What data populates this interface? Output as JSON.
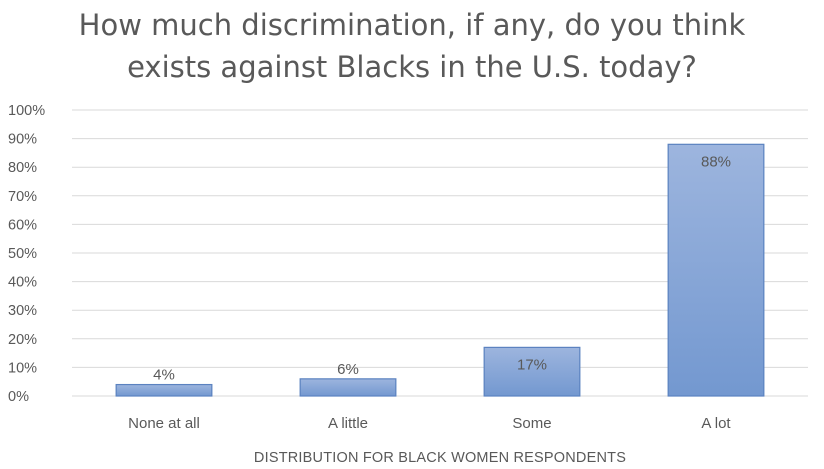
{
  "chart_data": {
    "type": "bar",
    "title_lines": [
      "How much discrimination, if any, do you think",
      "exists against Blacks in the U.S. today?"
    ],
    "xlabel": "DISTRIBUTION FOR BLACK WOMEN RESPONDENTS",
    "ylabel": "",
    "categories": [
      "None at all",
      "A little",
      "Some",
      "A lot"
    ],
    "values": [
      4,
      6,
      17,
      88
    ],
    "data_labels": [
      "4%",
      "6%",
      "17%",
      "88%"
    ],
    "ylim": [
      0,
      100
    ],
    "y_ticks": [
      "0%",
      "10%",
      "20%",
      "30%",
      "40%",
      "50%",
      "60%",
      "70%",
      "80%",
      "90%",
      "100%"
    ],
    "grid": true,
    "legend": "none",
    "colors": {
      "bar_fill_top": "#9db5de",
      "bar_fill_bottom": "#7398d0",
      "bar_stroke": "#5b82c0",
      "grid": "#d9d9d9",
      "text": "#595959"
    }
  }
}
